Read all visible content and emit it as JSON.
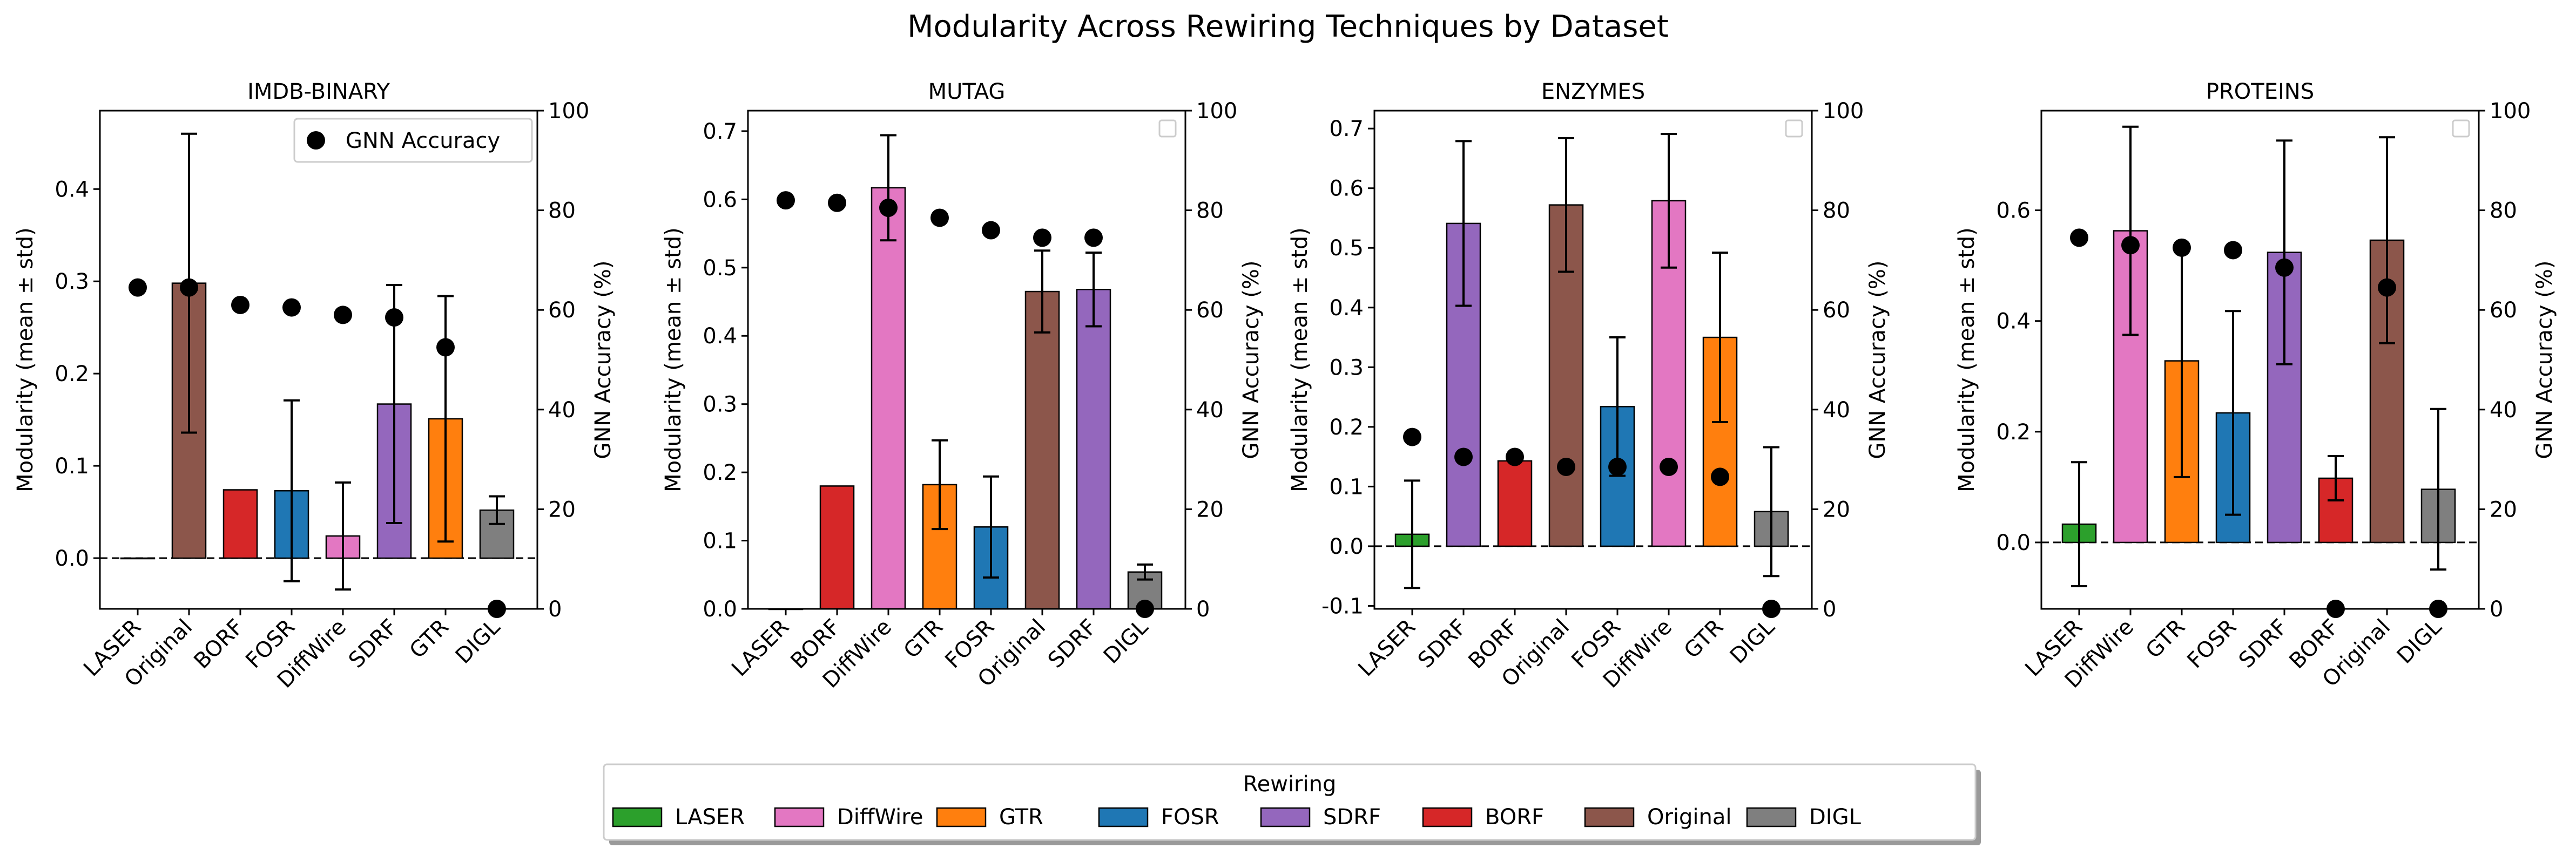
{
  "chart_data": {
    "type": "bar",
    "title": "Modularity Across Rewiring Techniques by Dataset",
    "legend": {
      "title": "Rewiring",
      "placement": "bottom-center",
      "entries": [
        {
          "name": "LASER",
          "color": "#2ca02c"
        },
        {
          "name": "DiffWire",
          "color": "#e377c2"
        },
        {
          "name": "GTR",
          "color": "#ff7f0e"
        },
        {
          "name": "FOSR",
          "color": "#1f77b4"
        },
        {
          "name": "SDRF",
          "color": "#9467bd"
        },
        {
          "name": "BORF",
          "color": "#d62728"
        },
        {
          "name": "Original",
          "color": "#8c564b"
        },
        {
          "name": "DIGL",
          "color": "#7f7f7f"
        }
      ]
    },
    "colors": {
      "LASER": "#2ca02c",
      "DiffWire": "#e377c2",
      "GTR": "#ff7f0e",
      "FOSR": "#1f77b4",
      "SDRF": "#9467bd",
      "BORF": "#d62728",
      "Original": "#8c564b",
      "DIGL": "#7f7f7f"
    },
    "panels": [
      {
        "title": "IMDB-BINARY",
        "ylabel": "Modularity (mean ± std)",
        "y2label": "GNN Accuracy (%)",
        "ylim": [
          -0.055,
          0.485
        ],
        "yticks": [
          0.0,
          0.1,
          0.2,
          0.3,
          0.4
        ],
        "y2lim": [
          0,
          100
        ],
        "y2ticks": [
          0,
          20,
          40,
          60,
          80,
          100
        ],
        "scatter_legend": "GNN Accuracy",
        "categories": [
          "LASER",
          "Original",
          "BORF",
          "FOSR",
          "DiffWire",
          "SDRF",
          "GTR",
          "DIGL"
        ],
        "values": [
          0.0,
          0.298,
          0.074,
          0.073,
          0.024,
          0.167,
          0.151,
          0.052
        ],
        "errors": [
          0.0,
          0.162,
          0.0,
          0.098,
          0.058,
          0.129,
          0.133,
          0.015
        ],
        "accuracy": [
          64.5,
          64.5,
          61.0,
          60.5,
          59.0,
          58.5,
          52.5,
          0.0
        ]
      },
      {
        "title": "MUTAG",
        "ylabel": "Modularity (mean ± std)",
        "y2label": "GNN Accuracy (%)",
        "ylim": [
          0.0,
          0.73
        ],
        "yticks": [
          0.0,
          0.1,
          0.2,
          0.3,
          0.4,
          0.5,
          0.6,
          0.7
        ],
        "y2lim": [
          0,
          100
        ],
        "y2ticks": [
          0,
          20,
          40,
          60,
          80,
          100
        ],
        "categories": [
          "LASER",
          "BORF",
          "DiffWire",
          "GTR",
          "FOSR",
          "Original",
          "SDRF",
          "DIGL"
        ],
        "values": [
          0.0,
          0.18,
          0.617,
          0.182,
          0.12,
          0.465,
          0.468,
          0.054
        ],
        "errors": [
          0.0,
          0.0,
          0.077,
          0.065,
          0.074,
          0.06,
          0.054,
          0.011
        ],
        "accuracy": [
          82.0,
          81.5,
          80.5,
          78.5,
          76.0,
          74.5,
          74.5,
          0.0
        ]
      },
      {
        "title": "ENZYMES",
        "ylabel": "Modularity (mean ± std)",
        "y2label": "GNN Accuracy (%)",
        "ylim": [
          -0.105,
          0.73
        ],
        "yticks": [
          -0.1,
          0.0,
          0.1,
          0.2,
          0.3,
          0.4,
          0.5,
          0.6,
          0.7
        ],
        "y2lim": [
          0,
          100
        ],
        "y2ticks": [
          0,
          20,
          40,
          60,
          80,
          100
        ],
        "categories": [
          "LASER",
          "SDRF",
          "BORF",
          "Original",
          "FOSR",
          "DiffWire",
          "GTR",
          "DIGL"
        ],
        "values": [
          0.02,
          0.541,
          0.143,
          0.572,
          0.234,
          0.579,
          0.35,
          0.058
        ],
        "errors": [
          0.09,
          0.138,
          0.0,
          0.112,
          0.116,
          0.112,
          0.142,
          0.108
        ],
        "accuracy": [
          34.5,
          30.5,
          30.5,
          28.5,
          28.5,
          28.5,
          26.5,
          0.0
        ]
      },
      {
        "title": "PROTEINS",
        "ylabel": "Modularity (mean ± std)",
        "y2label": "GNN Accuracy (%)",
        "ylim": [
          -0.12,
          0.78
        ],
        "yticks": [
          0.0,
          0.2,
          0.4,
          0.6
        ],
        "y2lim": [
          0,
          100
        ],
        "y2ticks": [
          0,
          20,
          40,
          60,
          80,
          100
        ],
        "categories": [
          "LASER",
          "DiffWire",
          "GTR",
          "FOSR",
          "SDRF",
          "BORF",
          "Original",
          "DIGL"
        ],
        "values": [
          0.033,
          0.563,
          0.328,
          0.234,
          0.524,
          0.116,
          0.546,
          0.096
        ],
        "errors": [
          0.112,
          0.188,
          0.21,
          0.184,
          0.202,
          0.04,
          0.186,
          0.145
        ],
        "accuracy": [
          74.5,
          73.0,
          72.5,
          72.0,
          68.5,
          0.0,
          64.5,
          0.0
        ]
      }
    ]
  }
}
